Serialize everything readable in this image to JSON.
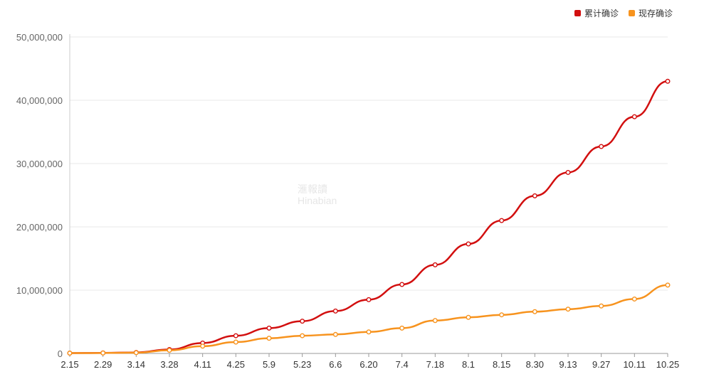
{
  "chart_data": {
    "type": "line",
    "categories": [
      "2.15",
      "2.29",
      "3.14",
      "3.28",
      "4.11",
      "4.25",
      "5.9",
      "5.23",
      "6.6",
      "6.20",
      "7.4",
      "7.18",
      "8.1",
      "8.15",
      "8.30",
      "9.13",
      "9.27",
      "10.11",
      "10.25"
    ],
    "series": [
      {
        "name": "累计确诊",
        "color": "#d20f0f",
        "values": [
          50000,
          83000,
          160000,
          620000,
          1650000,
          2800000,
          4000000,
          5100000,
          6700000,
          8500000,
          10900000,
          14000000,
          17300000,
          21000000,
          24900000,
          28600000,
          32700000,
          37400000,
          43000000
        ]
      },
      {
        "name": "现存确诊",
        "color": "#f7931e",
        "values": [
          50000,
          70000,
          120000,
          500000,
          1150000,
          1800000,
          2400000,
          2800000,
          3000000,
          3400000,
          4000000,
          5200000,
          5700000,
          6100000,
          6600000,
          7000000,
          7500000,
          8600000,
          10800000
        ]
      }
    ],
    "ylim": [
      0,
      50000000
    ],
    "y_ticks": [
      "0",
      "10,000,000",
      "20,000,000",
      "30,000,000",
      "40,000,000",
      "50,000,000"
    ],
    "grid": true,
    "legend_position": "top-right"
  },
  "watermark": {
    "line1": "滙報讀",
    "line2": "Hinabian"
  }
}
